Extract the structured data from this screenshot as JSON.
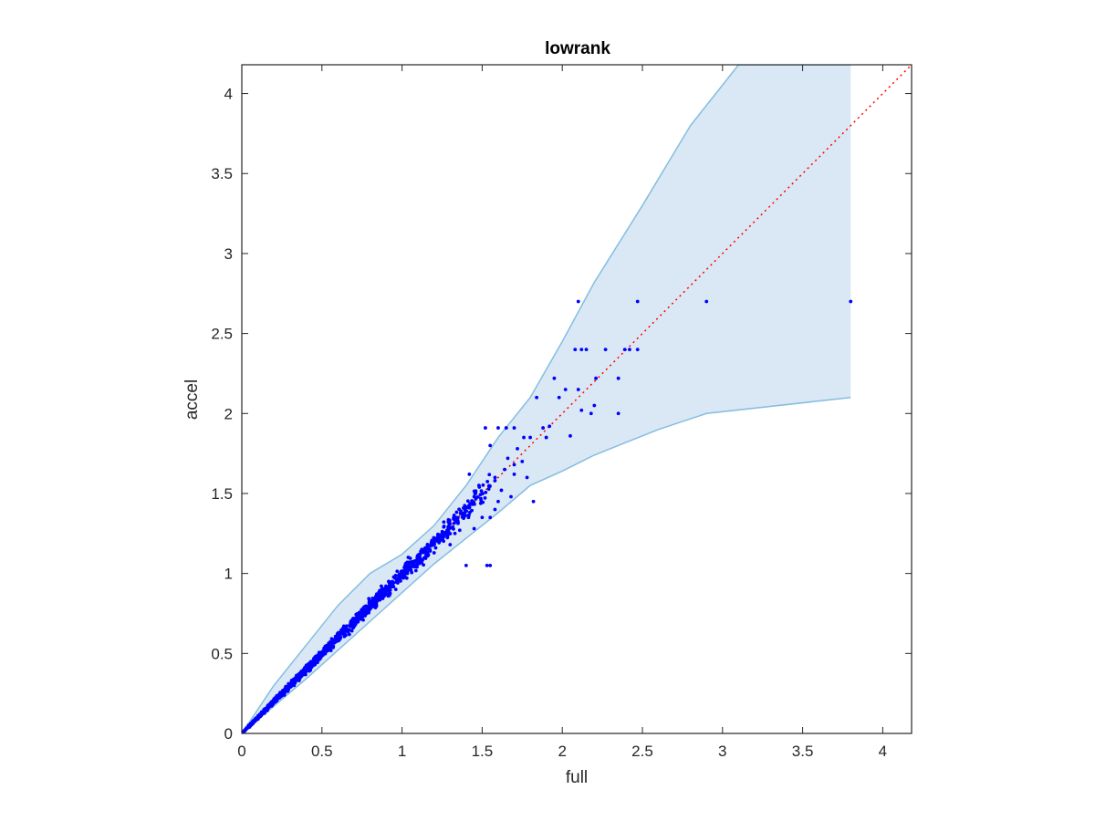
{
  "chart_data": {
    "type": "scatter",
    "title": "lowrank",
    "xlabel": "full",
    "ylabel": "accel",
    "xlim": [
      0,
      4.18
    ],
    "ylim": [
      0,
      4.18
    ],
    "xticks": [
      0,
      0.5,
      1,
      1.5,
      2,
      2.5,
      3,
      3.5,
      4
    ],
    "xtick_labels": [
      "0",
      "0.5",
      "1",
      "1.5",
      "2",
      "2.5",
      "3",
      "3.5",
      "4"
    ],
    "yticks": [
      0,
      0.5,
      1,
      1.5,
      2,
      2.5,
      3,
      3.5,
      4
    ],
    "ytick_labels": [
      "0",
      "0.5",
      "1",
      "1.5",
      "2",
      "2.5",
      "3",
      "3.5",
      "4"
    ],
    "grid": false,
    "colors": {
      "points": "#0000ff",
      "band_fill": "#d9e8f4",
      "band_edge": "#84bde0",
      "reference_line": "#ff0000",
      "axes": "#262626"
    },
    "band": {
      "upper": [
        [
          0,
          0
        ],
        [
          0.2,
          0.3
        ],
        [
          0.4,
          0.55
        ],
        [
          0.6,
          0.8
        ],
        [
          0.8,
          1.0
        ],
        [
          1.0,
          1.12
        ],
        [
          1.2,
          1.3
        ],
        [
          1.4,
          1.55
        ],
        [
          1.6,
          1.85
        ],
        [
          1.8,
          2.1
        ],
        [
          2.0,
          2.45
        ],
        [
          2.2,
          2.82
        ],
        [
          2.5,
          3.3
        ],
        [
          2.8,
          3.8
        ],
        [
          3.1,
          4.18
        ],
        [
          3.8,
          4.18
        ]
      ],
      "lower": [
        [
          0,
          0
        ],
        [
          0.2,
          0.17
        ],
        [
          0.4,
          0.34
        ],
        [
          0.6,
          0.52
        ],
        [
          0.8,
          0.7
        ],
        [
          1.0,
          0.88
        ],
        [
          1.2,
          1.06
        ],
        [
          1.4,
          1.22
        ],
        [
          1.6,
          1.38
        ],
        [
          1.8,
          1.55
        ],
        [
          2.0,
          1.64
        ],
        [
          2.2,
          1.74
        ],
        [
          2.4,
          1.82
        ],
        [
          2.6,
          1.9
        ],
        [
          2.9,
          2.0
        ],
        [
          3.8,
          2.1
        ]
      ]
    },
    "reference_line": [
      [
        0,
        0
      ],
      [
        4.18,
        4.18
      ]
    ],
    "series": [
      {
        "x": [
          1.52,
          1.6,
          1.65,
          1.7,
          1.55,
          1.42,
          1.48,
          1.58,
          1.66,
          1.72,
          1.76,
          1.8,
          1.84,
          1.88,
          1.92,
          1.95,
          1.98,
          2.02,
          2.08,
          2.12,
          2.1,
          2.15,
          2.18,
          2.21,
          2.27,
          2.35,
          2.39,
          2.42,
          2.47,
          2.1,
          2.47,
          2.9,
          3.8,
          1.4,
          1.53,
          1.6,
          1.62,
          1.55,
          1.45,
          1.5,
          1.58,
          1.68,
          1.7,
          1.36,
          1.3,
          1.25,
          1.21,
          1.28,
          1.33,
          1.35,
          1.37,
          1.24,
          1.45,
          1.58,
          1.64,
          1.7,
          1.75,
          1.82,
          1.9,
          1.78,
          2.2,
          2.35,
          2.05,
          2.12,
          1.55
        ],
        "y": [
          1.91,
          1.91,
          1.91,
          1.91,
          1.8,
          1.62,
          1.55,
          1.58,
          1.72,
          1.78,
          1.85,
          1.85,
          2.1,
          1.91,
          1.92,
          2.22,
          2.1,
          2.15,
          2.4,
          2.4,
          2.15,
          2.4,
          2.0,
          2.22,
          2.4,
          2.22,
          2.4,
          2.4,
          2.4,
          2.7,
          2.7,
          2.7,
          2.7,
          1.05,
          1.05,
          1.45,
          1.52,
          1.35,
          1.28,
          1.35,
          1.4,
          1.48,
          1.62,
          1.27,
          1.18,
          1.22,
          1.16,
          1.26,
          1.25,
          1.32,
          1.38,
          1.22,
          1.48,
          1.6,
          1.65,
          1.68,
          1.7,
          1.45,
          1.85,
          1.6,
          2.05,
          2.0,
          1.86,
          2.02,
          1.05
        ]
      }
    ]
  }
}
